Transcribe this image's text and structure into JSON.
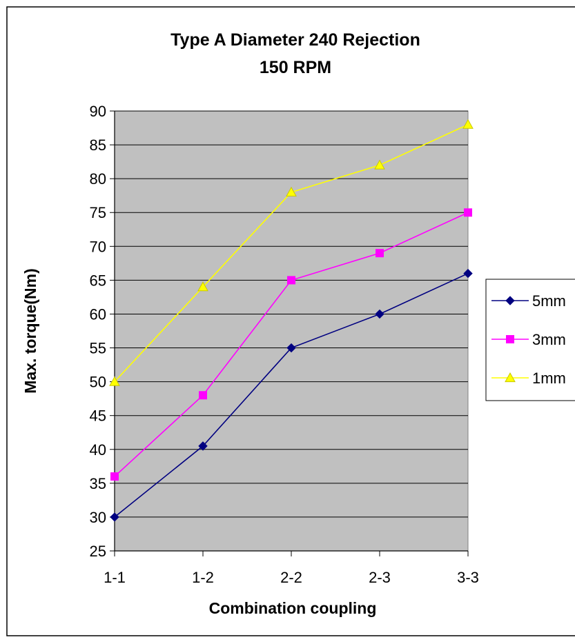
{
  "chart_data": {
    "type": "line",
    "title": "Type A Diameter 240 Rejection",
    "subtitle": "150 RPM",
    "xlabel": "Combination coupling",
    "ylabel": "Max. torque(Nm)",
    "categories": [
      "1-1",
      "1-2",
      "2-2",
      "2-3",
      "3-3"
    ],
    "ylim": [
      25,
      90
    ],
    "y_ticks": [
      25,
      30,
      35,
      40,
      45,
      50,
      55,
      60,
      65,
      70,
      75,
      80,
      85,
      90
    ],
    "grid": true,
    "legend_position": "right",
    "series": [
      {
        "name": "5mm",
        "values": [
          30,
          40.5,
          55,
          60,
          66
        ],
        "color": "#000080",
        "marker": "diamond"
      },
      {
        "name": "3mm",
        "values": [
          36,
          48,
          65,
          69,
          75
        ],
        "color": "#FF00FF",
        "marker": "square"
      },
      {
        "name": "1mm",
        "values": [
          50,
          64,
          78,
          82,
          88
        ],
        "color": "#FFFF00",
        "marker": "triangle"
      }
    ],
    "plot_background": "#C0C0C0"
  }
}
